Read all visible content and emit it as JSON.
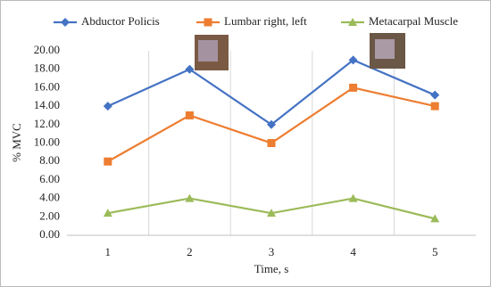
{
  "chart_data": {
    "type": "line",
    "x_label": "Time, s",
    "y_label": "% MVC",
    "categories": [
      "1",
      "2",
      "3",
      "4",
      "5"
    ],
    "series": [
      {
        "name": "Abductor Policis",
        "color": "#4472c4",
        "marker": "diamond",
        "values": [
          14,
          18,
          12,
          19,
          15.2
        ]
      },
      {
        "name": "Lumbar right, left",
        "color": "#ed7d31",
        "marker": "square",
        "values": [
          8,
          13,
          10,
          16,
          14
        ]
      },
      {
        "name": "Metacarpal Muscle",
        "color": "#9bbb59",
        "marker": "triangle",
        "values": [
          2.4,
          4,
          2.4,
          4,
          1.8
        ]
      }
    ],
    "ylim": [
      0,
      20
    ],
    "yticks": [
      {
        "value": 0,
        "label": "0.00"
      },
      {
        "value": 2,
        "label": "2.00"
      },
      {
        "value": 4,
        "label": "4.00"
      },
      {
        "value": 6,
        "label": "6.00"
      },
      {
        "value": 8,
        "label": "8.00"
      },
      {
        "value": 10,
        "label": "10.00"
      },
      {
        "value": 12,
        "label": "12.00"
      },
      {
        "value": 14,
        "label": "14.00"
      },
      {
        "value": 16,
        "label": "16.00"
      },
      {
        "value": 18,
        "label": "18.00"
      },
      {
        "value": 20,
        "label": "20.00"
      }
    ],
    "category_dividers": true,
    "legend": "top"
  }
}
